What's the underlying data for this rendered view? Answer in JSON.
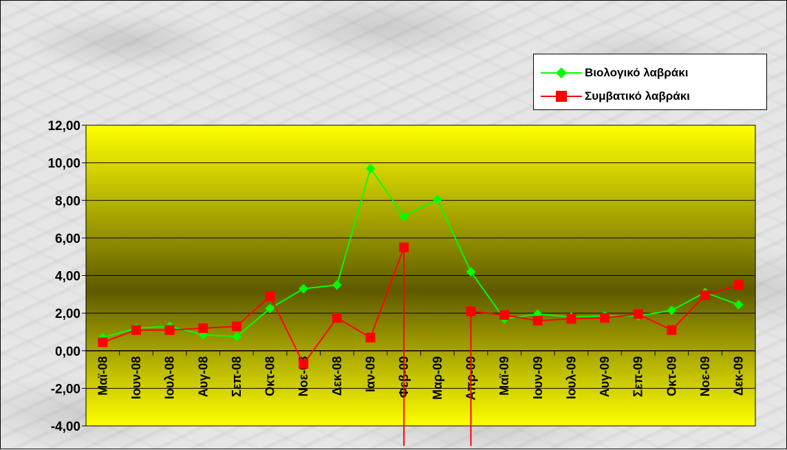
{
  "chart_data": {
    "type": "line",
    "title": "",
    "xlabel": "",
    "ylabel": "",
    "categories": [
      "Μαϊ-08",
      "Ιουν-08",
      "Ιουλ-08",
      "Αυγ-08",
      "Σεπ-08",
      "Οκτ-08",
      "Νοε-08",
      "Δεκ-08",
      "Ιαν-09",
      "Φεβ-09",
      "Μαρ-09",
      "Απρ-09",
      "Μαϊ-09",
      "Ιουν-09",
      "Ιουλ-09",
      "Αυγ-09",
      "Σεπ-09",
      "Οκτ-09",
      "Νοε-09",
      "Δεκ-09"
    ],
    "ylim": [
      -4,
      12
    ],
    "yticks": [
      -4,
      -2,
      0,
      2,
      4,
      6,
      8,
      10,
      12
    ],
    "ytick_labels": [
      "-4,00",
      "-2,00",
      "0,00",
      "2,00",
      "4,00",
      "6,00",
      "8,00",
      "10,00",
      "12,00"
    ],
    "grid": true,
    "legend_position": "top-right",
    "plot_background": "yellow-olive gradient",
    "series": [
      {
        "name": "Βιολογικό λαβράκι",
        "color": "#00ff00",
        "marker": "diamond",
        "values": [
          0.7,
          1.2,
          1.3,
          0.85,
          0.75,
          2.25,
          3.3,
          3.5,
          9.7,
          7.15,
          8.05,
          4.2,
          1.7,
          1.95,
          1.8,
          1.85,
          1.85,
          2.15,
          3.1,
          2.45
        ]
      },
      {
        "name": "Συμβατικό λαβράκι",
        "color": "#ff0000",
        "marker": "square",
        "values": [
          0.45,
          1.1,
          1.1,
          1.2,
          1.3,
          2.9,
          -0.7,
          1.75,
          0.7,
          5.5,
          null,
          2.1,
          1.9,
          1.6,
          1.7,
          1.75,
          1.95,
          1.1,
          2.95,
          3.5
        ],
        "drop_lines_to": -6
      }
    ]
  }
}
